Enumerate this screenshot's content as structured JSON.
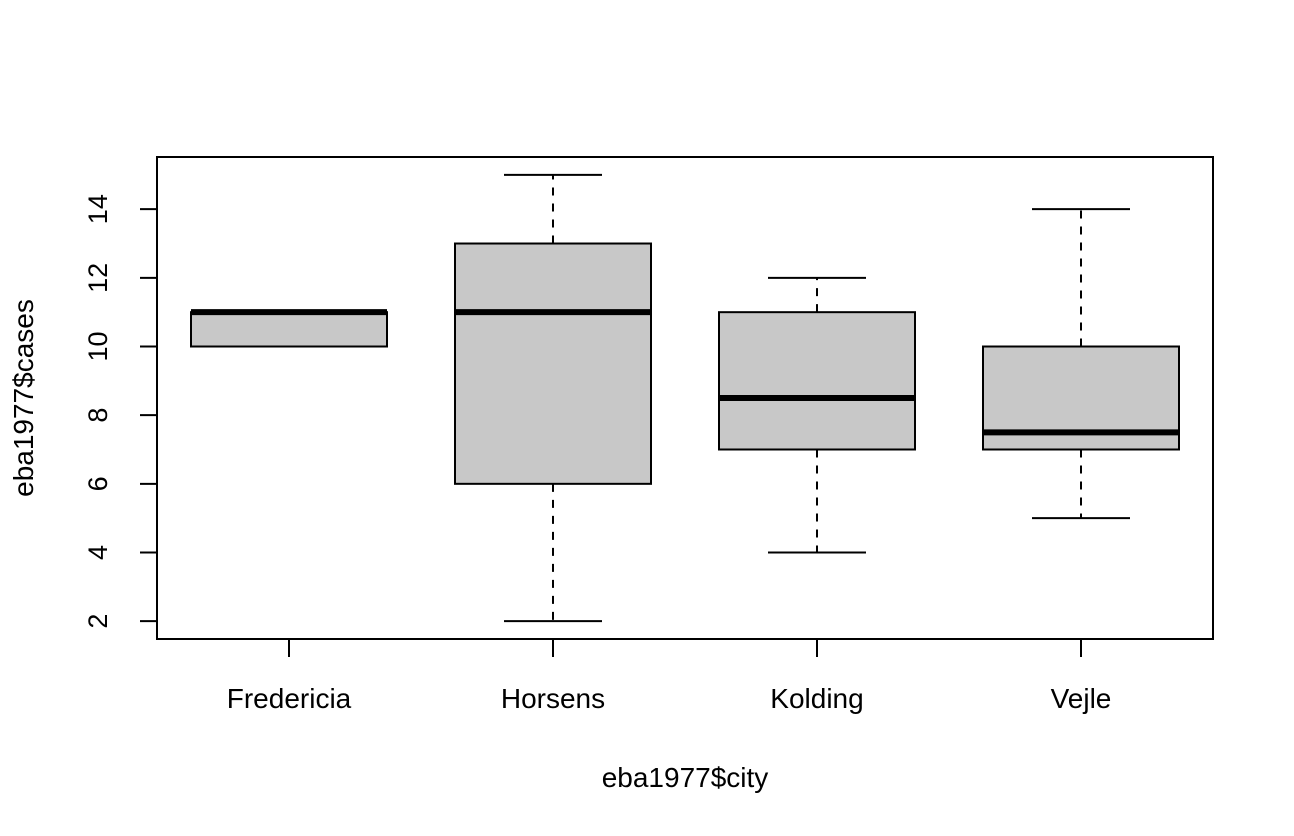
{
  "chart_data": {
    "type": "boxplot",
    "title": "",
    "xlabel": "eba1977$city",
    "ylabel": "eba1977$cases",
    "categories": [
      "Fredericia",
      "Horsens",
      "Kolding",
      "Vejle"
    ],
    "boxes": [
      {
        "category": "Fredericia",
        "whisker_low": 10,
        "q1": 10,
        "median": 11,
        "q3": 11,
        "whisker_high": 11
      },
      {
        "category": "Horsens",
        "whisker_low": 2,
        "q1": 6,
        "median": 11,
        "q3": 13,
        "whisker_high": 15
      },
      {
        "category": "Kolding",
        "whisker_low": 4,
        "q1": 7,
        "median": 8.5,
        "q3": 11,
        "whisker_high": 12
      },
      {
        "category": "Vejle",
        "whisker_low": 5,
        "q1": 7,
        "median": 7.5,
        "q3": 10,
        "whisker_high": 14
      }
    ],
    "yticks": [
      2,
      4,
      6,
      8,
      10,
      12,
      14
    ],
    "ylim": [
      1.48,
      15.52
    ],
    "box_fill": "#c8c8c8",
    "line_color": "#000000",
    "grid": false,
    "legend": false
  }
}
